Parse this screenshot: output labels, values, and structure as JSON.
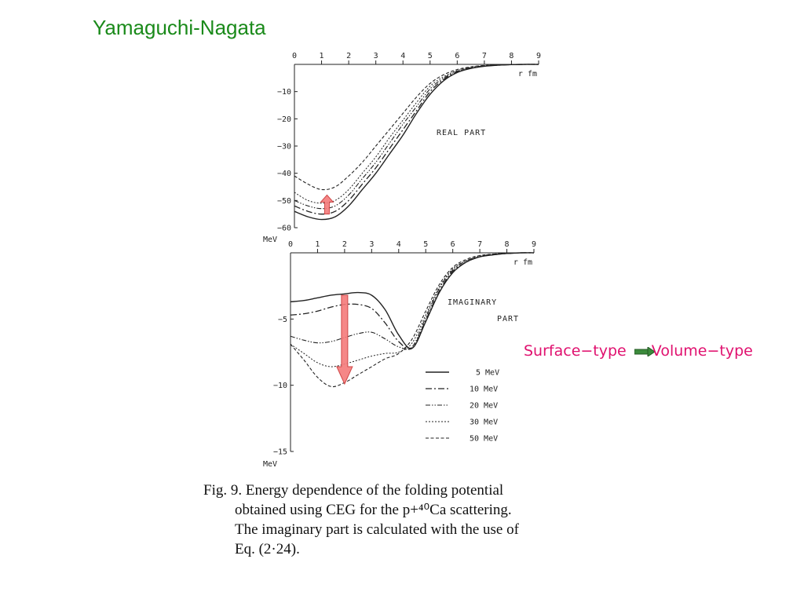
{
  "slide": {
    "title": "Yamaguchi-Nagata",
    "annotation": {
      "from": "Surface−type",
      "to": "Volume−type",
      "color": "#e0116f",
      "arrow_color": "#3b8a3b"
    }
  },
  "caption": {
    "lines": [
      "Fig. 9.   Energy dependence of the folding potential",
      "obtained using CEG for the p+⁴⁰Ca scattering.",
      "The imaginary part is calculated with the use of",
      "Eq. (2·24)."
    ]
  },
  "chart_data": [
    {
      "type": "line",
      "panel": "real",
      "title": "REAL PART",
      "xlabel": "r  fm",
      "ylabel": "MeV",
      "xlim": [
        0,
        9
      ],
      "ylim": [
        -60,
        0
      ],
      "xticks": [
        "0",
        "1",
        "2",
        "3",
        "4",
        "5",
        "6",
        "7",
        "8",
        "9"
      ],
      "yticks": [
        {
          "value": -10,
          "label": "−10"
        },
        {
          "value": -20,
          "label": "−20"
        },
        {
          "value": -30,
          "label": "−30"
        },
        {
          "value": -40,
          "label": "−40"
        },
        {
          "value": -50,
          "label": "−50"
        },
        {
          "value": -60,
          "label": "−60"
        }
      ],
      "annotation_arrow": {
        "from_y": -55,
        "to_y": -48,
        "at_x": 1.2,
        "color": "#f47a7a",
        "direction": "up"
      },
      "series": [
        {
          "label": "5 MeV",
          "style": "solid",
          "x": [
            0,
            0.5,
            1,
            1.5,
            2,
            2.5,
            3,
            3.5,
            4,
            4.5,
            5,
            5.5,
            6,
            6.5,
            7,
            7.5,
            8,
            8.5,
            9
          ],
          "y": [
            -54,
            -56,
            -57,
            -56,
            -52,
            -46,
            -40,
            -33,
            -26,
            -18,
            -11,
            -6,
            -3,
            -1.5,
            -0.7,
            -0.3,
            -0.1,
            0,
            0
          ]
        },
        {
          "label": "10 MeV",
          "style": "dashdot",
          "x": [
            0,
            0.5,
            1,
            1.5,
            2,
            2.5,
            3,
            3.5,
            4,
            4.5,
            5,
            5.5,
            6,
            6.5,
            7,
            7.5,
            8,
            8.5,
            9
          ],
          "y": [
            -52,
            -54,
            -55,
            -54,
            -50,
            -44,
            -38,
            -31,
            -24,
            -17,
            -10,
            -5.5,
            -2.8,
            -1.4,
            -0.6,
            -0.3,
            -0.1,
            0,
            0
          ]
        },
        {
          "label": "20 MeV",
          "style": "dashdotdot",
          "x": [
            0,
            0.5,
            1,
            1.5,
            2,
            2.5,
            3,
            3.5,
            4,
            4.5,
            5,
            5.5,
            6,
            6.5,
            7,
            7.5,
            8,
            8.5,
            9
          ],
          "y": [
            -50,
            -52,
            -53,
            -52,
            -48,
            -42,
            -36,
            -29,
            -22,
            -15.5,
            -9,
            -5,
            -2.5,
            -1.2,
            -0.5,
            -0.2,
            -0.1,
            0,
            0
          ]
        },
        {
          "label": "30 MeV",
          "style": "dotted",
          "x": [
            0,
            0.5,
            1,
            1.5,
            2,
            2.5,
            3,
            3.5,
            4,
            4.5,
            5,
            5.5,
            6,
            6.5,
            7,
            7.5,
            8,
            8.5,
            9
          ],
          "y": [
            -47,
            -50,
            -51,
            -50,
            -46,
            -40,
            -34,
            -27,
            -20.5,
            -14,
            -8,
            -4.5,
            -2.3,
            -1.1,
            -0.5,
            -0.2,
            -0.1,
            0,
            0
          ]
        },
        {
          "label": "50 MeV",
          "style": "dashed",
          "x": [
            0,
            0.5,
            1,
            1.5,
            2,
            2.5,
            3,
            3.5,
            4,
            4.5,
            5,
            5.5,
            6,
            6.5,
            7,
            7.5,
            8,
            8.5,
            9
          ],
          "y": [
            -41,
            -44,
            -46,
            -45,
            -41,
            -36,
            -30,
            -24,
            -18,
            -12,
            -7,
            -3.8,
            -1.9,
            -0.9,
            -0.4,
            -0.2,
            -0.1,
            0,
            0
          ]
        }
      ]
    },
    {
      "type": "line",
      "panel": "imaginary",
      "title": "IMAGINARY PART",
      "xlabel": "r  fm",
      "ylabel": "MeV",
      "xlim": [
        0,
        9
      ],
      "ylim": [
        -15,
        0
      ],
      "xticks": [
        "0",
        "1",
        "2",
        "3",
        "4",
        "5",
        "6",
        "7",
        "8",
        "9"
      ],
      "yticks": [
        {
          "value": -5,
          "label": "−5"
        },
        {
          "value": -10,
          "label": "−10"
        },
        {
          "value": -15,
          "label": "−15"
        }
      ],
      "annotation_arrow": {
        "from_y": -3.2,
        "to_y": -9.9,
        "at_x": 2.0,
        "color": "#f47a7a",
        "direction": "down"
      },
      "legend": {
        "position": "bottom-right"
      },
      "series": [
        {
          "label": "5 MeV",
          "style": "solid",
          "x": [
            0,
            0.5,
            1,
            1.5,
            2,
            2.5,
            3,
            3.5,
            4,
            4.5,
            5,
            5.5,
            6,
            6.5,
            7,
            7.5,
            8,
            8.5,
            9
          ],
          "y": [
            -3.7,
            -3.6,
            -3.4,
            -3.2,
            -3.1,
            -3.0,
            -3.2,
            -4.3,
            -6.2,
            -7.2,
            -5.2,
            -3.0,
            -1.5,
            -0.7,
            -0.3,
            -0.15,
            -0.05,
            0,
            0
          ]
        },
        {
          "label": "10 MeV",
          "style": "dashdot",
          "x": [
            0,
            0.5,
            1,
            1.5,
            2,
            2.5,
            3,
            3.5,
            4,
            4.5,
            5,
            5.5,
            6,
            6.5,
            7,
            7.5,
            8,
            8.5,
            9
          ],
          "y": [
            -4.7,
            -4.6,
            -4.4,
            -4.1,
            -3.9,
            -3.9,
            -4.2,
            -5.3,
            -6.7,
            -7.2,
            -5.1,
            -2.9,
            -1.4,
            -0.7,
            -0.3,
            -0.15,
            -0.05,
            0,
            0
          ]
        },
        {
          "label": "20 MeV",
          "style": "dashdotdot",
          "x": [
            0,
            0.5,
            1,
            1.5,
            2,
            2.5,
            3,
            3.5,
            4,
            4.5,
            5,
            5.5,
            6,
            6.5,
            7,
            7.5,
            8,
            8.5,
            9
          ],
          "y": [
            -6.3,
            -6.6,
            -6.8,
            -6.7,
            -6.4,
            -6.1,
            -6.0,
            -6.5,
            -7.1,
            -7.1,
            -4.9,
            -2.7,
            -1.3,
            -0.6,
            -0.3,
            -0.1,
            -0.05,
            0,
            0
          ]
        },
        {
          "label": "30 MeV",
          "style": "dotted",
          "x": [
            0,
            0.5,
            1,
            1.5,
            2,
            2.5,
            3,
            3.5,
            4,
            4.5,
            5,
            5.5,
            6,
            6.5,
            7,
            7.5,
            8,
            8.5,
            9
          ],
          "y": [
            -6.9,
            -7.6,
            -8.3,
            -8.6,
            -8.4,
            -8.1,
            -7.8,
            -7.6,
            -7.5,
            -6.8,
            -4.7,
            -2.6,
            -1.2,
            -0.6,
            -0.25,
            -0.1,
            -0.05,
            0,
            0
          ]
        },
        {
          "label": "50 MeV",
          "style": "dashed",
          "x": [
            0,
            0.5,
            1,
            1.5,
            2,
            2.5,
            3,
            3.5,
            4,
            4.5,
            5,
            5.5,
            6,
            6.5,
            7,
            7.5,
            8,
            8.5,
            9
          ],
          "y": [
            -6.9,
            -8.1,
            -9.4,
            -10.1,
            -9.8,
            -9.2,
            -8.6,
            -8.0,
            -7.6,
            -6.5,
            -4.4,
            -2.4,
            -1.1,
            -0.5,
            -0.2,
            -0.1,
            -0.05,
            0,
            0
          ]
        }
      ]
    }
  ]
}
